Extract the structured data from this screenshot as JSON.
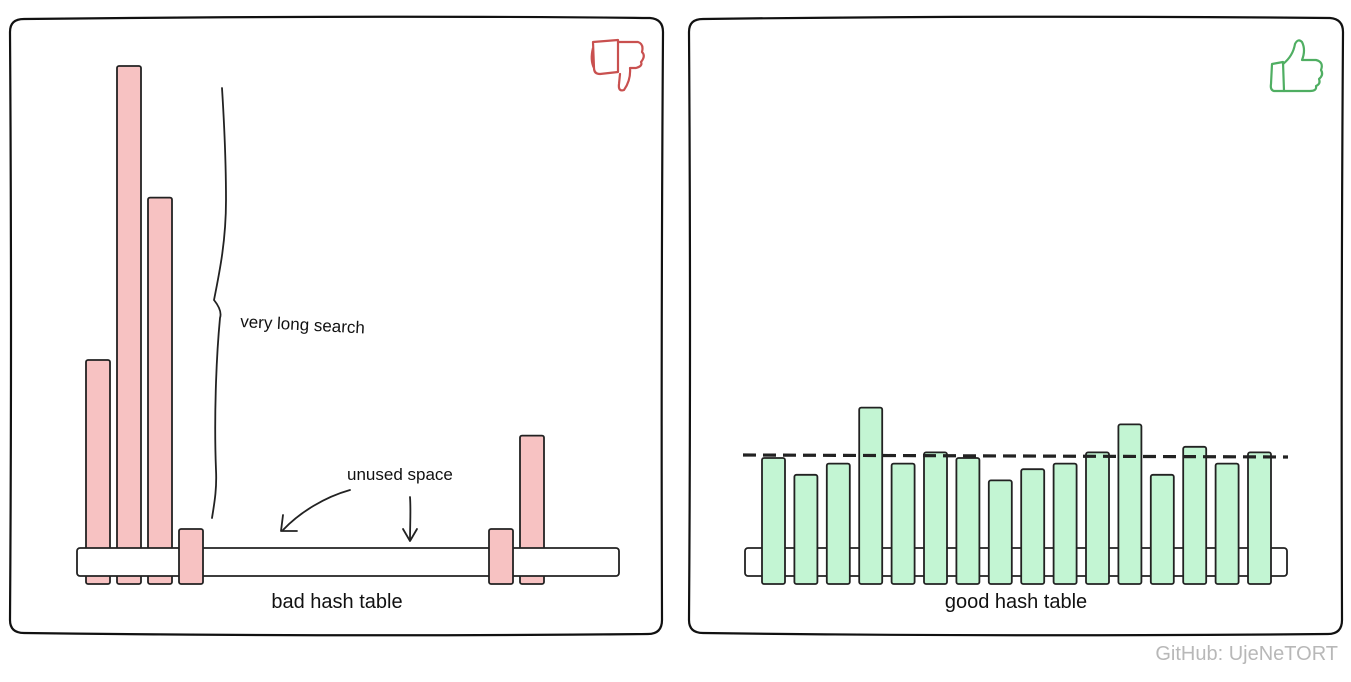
{
  "left_panel": {
    "title": "bad hash table",
    "icon": "thumbs-down-icon",
    "icon_color": "#c9504f",
    "bar_color": "#f7c2c2",
    "chains": [
      7.0,
      17.5,
      12.8,
      0.6,
      0.0,
      0.0,
      0.0,
      0.0,
      0.0,
      0.0,
      0.0,
      0.0,
      0.0,
      0.6,
      4.3
    ],
    "annotation_long": "very long search",
    "annotation_unused": "unused space"
  },
  "right_panel": {
    "title": "good hash table",
    "icon": "thumbs-up-icon",
    "icon_color": "#4fae62",
    "bar_color": "#c3f5d3",
    "chains": [
      4.5,
      3.9,
      4.3,
      6.3,
      4.3,
      4.7,
      4.5,
      3.7,
      4.1,
      4.3,
      4.7,
      5.7,
      3.9,
      4.9,
      4.3,
      4.7
    ],
    "average_line": "dashed"
  },
  "credit": "GitHub: UjeNeTORT"
}
